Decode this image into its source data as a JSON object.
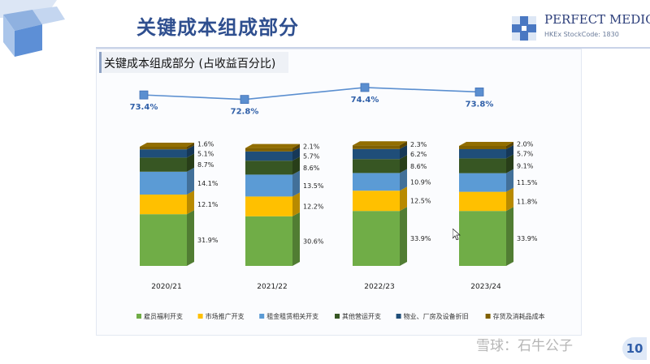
{
  "page": {
    "title": "关键成本组成部分",
    "logo_text": "PERFECT MEDICAL",
    "logo_sub": "HKEx StockCode: 1830",
    "page_number": "10",
    "watermark": "雪球：石牛公子"
  },
  "colors": {
    "title": "#2f4f8f",
    "series": [
      "#70ad47",
      "#ffc000",
      "#5b9bd5",
      "#375623",
      "#1f4e79",
      "#7f6000"
    ],
    "line": "#5b8fd0",
    "line_label": "#2f5fa8"
  },
  "chart_data": {
    "type": "bar",
    "stacked": true,
    "title": "关键成本组成部分 (占收益百分比)",
    "categories": [
      "2020/21",
      "2021/22",
      "2022/23",
      "2023/24"
    ],
    "series": [
      {
        "name": "雇员福利开支",
        "values": [
          31.9,
          30.6,
          33.9,
          33.9
        ],
        "labels": [
          "31.9%",
          "30.6%",
          "33.9%",
          "33.9%"
        ]
      },
      {
        "name": "市场推广开支",
        "values": [
          12.1,
          12.2,
          12.5,
          11.8
        ],
        "labels": [
          "12.1%",
          "12.2%",
          "12.5%",
          "11.8%"
        ]
      },
      {
        "name": "租金租赁相关开支",
        "values": [
          14.1,
          13.5,
          10.9,
          11.5
        ],
        "labels": [
          "14.1%",
          "13.5%",
          "10.9%",
          "11.5%"
        ]
      },
      {
        "name": "其他营运开支",
        "values": [
          8.7,
          8.6,
          8.6,
          9.1
        ],
        "labels": [
          "8.7%",
          "8.6%",
          "8.6%",
          "9.1%"
        ]
      },
      {
        "name": "物业、厂房及设备折旧",
        "values": [
          5.1,
          5.7,
          6.2,
          5.7
        ],
        "labels": [
          "5.1%",
          "5.7%",
          "6.2%",
          "5.7%"
        ]
      },
      {
        "name": "存货及消耗品成本",
        "values": [
          1.6,
          2.1,
          2.3,
          2.0
        ],
        "labels": [
          "1.6%",
          "2.1%",
          "2.3%",
          "2.0%"
        ]
      }
    ],
    "total": {
      "values": [
        73.4,
        72.8,
        74.4,
        73.8
      ],
      "labels": [
        "73.4%",
        "72.8%",
        "74.4%",
        "73.8%"
      ]
    },
    "legend_position": "bottom",
    "grid": false
  }
}
